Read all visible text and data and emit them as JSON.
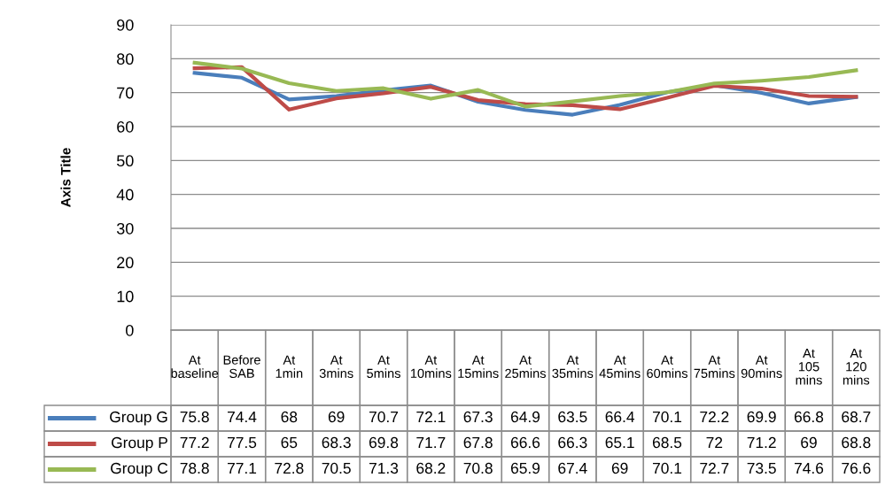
{
  "chart_data": {
    "type": "line",
    "ylabel": "Axis Title",
    "categories": [
      "At baseline",
      "Before SAB",
      "At 1min",
      "At 3mins",
      "At 5mins",
      "At 10mins",
      "At 15mins",
      "At 25mins",
      "At 35mins",
      "At 45mins",
      "At 60mins",
      "At 75mins",
      "At 90mins",
      "At 105 mins",
      "At 120 mins"
    ],
    "series": [
      {
        "name": "Group G",
        "color": "#4a7ebb",
        "values": [
          75.8,
          74.4,
          68,
          69,
          70.7,
          72.1,
          67.3,
          64.9,
          63.5,
          66.4,
          70.1,
          72.2,
          69.9,
          66.8,
          68.7
        ]
      },
      {
        "name": "Group P",
        "color": "#be4b48",
        "values": [
          77.2,
          77.5,
          65,
          68.3,
          69.8,
          71.7,
          67.8,
          66.6,
          66.3,
          65.1,
          68.5,
          72,
          71.2,
          69,
          68.8
        ]
      },
      {
        "name": "Group C",
        "color": "#98b954",
        "values": [
          78.8,
          77.1,
          72.8,
          70.5,
          71.3,
          68.2,
          70.8,
          65.9,
          67.4,
          69,
          70.1,
          72.7,
          73.5,
          74.6,
          76.6
        ]
      }
    ],
    "ylim": [
      0,
      90
    ],
    "yticks": [
      0,
      10,
      20,
      30,
      40,
      50,
      60,
      70,
      80,
      90
    ],
    "grid": "y",
    "legend": "bottom left",
    "data_labels": true,
    "marker": "none",
    "line_style": "solid"
  }
}
